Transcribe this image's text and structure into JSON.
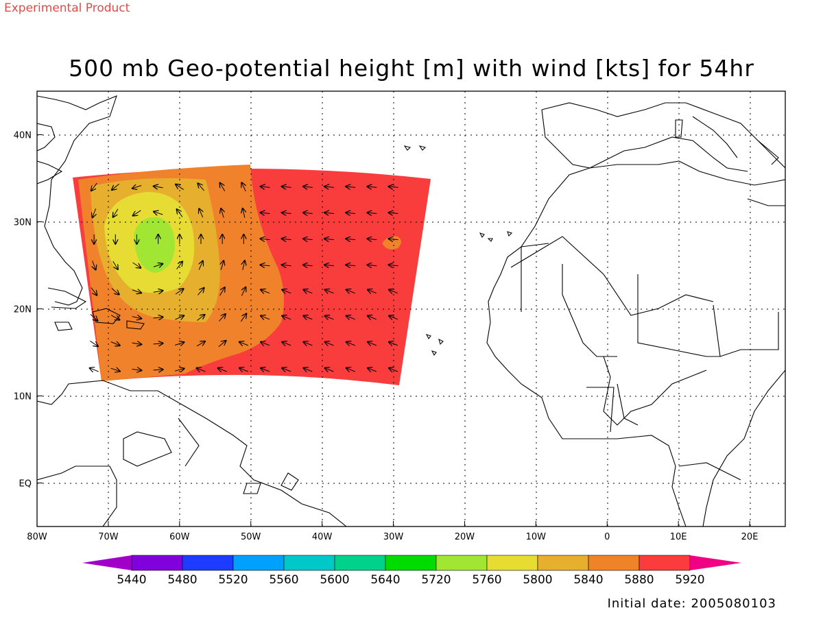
{
  "header": {
    "experimental_label": "Experimental Product",
    "title": "500 mb Geo-potential height [m] with wind [kts] for 54hr"
  },
  "footer": {
    "initial_date": "Initial date: 2005080103"
  },
  "map": {
    "lon_range": [
      -80,
      25
    ],
    "lat_range": [
      -5,
      45
    ],
    "lon_ticks": [
      {
        "value": -80,
        "label": "80W"
      },
      {
        "value": -70,
        "label": "70W"
      },
      {
        "value": -60,
        "label": "60W"
      },
      {
        "value": -50,
        "label": "50W"
      },
      {
        "value": -40,
        "label": "40W"
      },
      {
        "value": -30,
        "label": "30W"
      },
      {
        "value": -20,
        "label": "20W"
      },
      {
        "value": -10,
        "label": "10W"
      },
      {
        "value": 0,
        "label": "0"
      },
      {
        "value": 10,
        "label": "10E"
      },
      {
        "value": 20,
        "label": "20E"
      }
    ],
    "lat_ticks": [
      {
        "value": 40,
        "label": "40N"
      },
      {
        "value": 30,
        "label": "30N"
      },
      {
        "value": 20,
        "label": "20N"
      },
      {
        "value": 10,
        "label": "10N"
      },
      {
        "value": 0,
        "label": "EQ"
      }
    ],
    "grid": true,
    "land_outline": "black coastlines and borders of North America, the Caribbean, South America, Europe and Africa"
  },
  "colorbar": {
    "labels": [
      "5440",
      "5480",
      "5520",
      "5560",
      "5600",
      "5640",
      "5720",
      "5760",
      "5800",
      "5840",
      "5880",
      "5920"
    ],
    "colors": [
      "#a000c8",
      "#8200dc",
      "#1e3cff",
      "#00a0ff",
      "#00c8c8",
      "#00d28c",
      "#00dc00",
      "#a0e632",
      "#e6dc32",
      "#e6af2d",
      "#f08228",
      "#fa3c3c",
      "#f00082"
    ]
  },
  "chart_data": {
    "type": "heatmap",
    "title": "500 mb Geo-potential height [m] with wind [kts] for 54hr",
    "field": "500 mb geopotential height",
    "units": "m",
    "domain": {
      "lon": [
        -75,
        -25
      ],
      "lat": [
        11,
        36
      ]
    },
    "contour_levels": [
      5440,
      5480,
      5520,
      5560,
      5600,
      5640,
      5720,
      5760,
      5800,
      5840,
      5880,
      5920
    ],
    "regions": [
      {
        "level_range": [
          5880,
          5920
        ],
        "description": "background (most of domain, east of 52W)"
      },
      {
        "level_range": [
          5840,
          5880
        ],
        "description": "ring around cyclone, 74W–42W, 14N–34N"
      },
      {
        "level_range": [
          5800,
          5840
        ],
        "description": "inner ring, 70W–55W, 20N–34N"
      },
      {
        "level_range": [
          5760,
          5800
        ],
        "description": "cyclone core ring centered ~64W 28N"
      },
      {
        "level_range": [
          5720,
          5760
        ],
        "description": "cyclone center ~64W 28N"
      },
      {
        "level_range": [
          5840,
          5880
        ],
        "description": "small closed area near 30W 28N"
      }
    ],
    "wind_vectors": "arrows (kts) showing cyclonic flow around 64W 28N and easterly/northerly flow elsewhere"
  }
}
